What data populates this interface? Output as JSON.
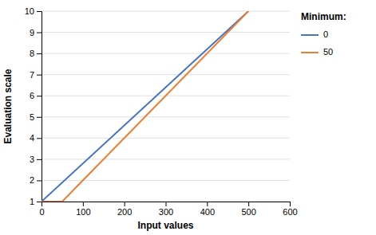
{
  "chart_data": {
    "type": "line",
    "xlabel": "Input values",
    "ylabel": "Evaluation scale",
    "xlim": [
      0,
      600
    ],
    "ylim": [
      1,
      10
    ],
    "xticks": [
      0,
      100,
      200,
      300,
      400,
      500,
      600
    ],
    "yticks": [
      1,
      2,
      3,
      4,
      5,
      6,
      7,
      8,
      9,
      10
    ],
    "grid": "y",
    "legend": "right",
    "legend_title": "Minimum:",
    "series": [
      {
        "name": "0",
        "color": "#4472C4",
        "x": [
          0,
          500
        ],
        "values": [
          1,
          10
        ]
      },
      {
        "name": "50",
        "color": "#ED7D31",
        "x": [
          0,
          50,
          500
        ],
        "values": [
          1,
          1,
          10
        ]
      }
    ]
  }
}
